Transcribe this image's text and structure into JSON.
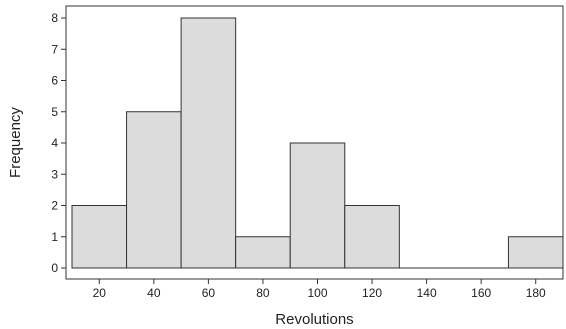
{
  "chart_data": {
    "type": "bar",
    "title": "",
    "xlabel": "Revolutions",
    "ylabel": "Frequency",
    "bin_edges": [
      10,
      30,
      50,
      70,
      90,
      110,
      130,
      150,
      170,
      190
    ],
    "values": [
      2,
      5,
      8,
      1,
      4,
      2,
      0,
      0,
      1
    ],
    "xlim": [
      10,
      190
    ],
    "ylim": [
      0,
      8
    ],
    "x_ticks": [
      20,
      40,
      60,
      80,
      100,
      120,
      140,
      160,
      180
    ],
    "x_tick_labels": [
      "20",
      "40",
      "60",
      "80",
      "100",
      "120",
      "140",
      "160",
      "180"
    ],
    "y_ticks": [
      0,
      1,
      2,
      3,
      4,
      5,
      6,
      7,
      8
    ],
    "y_tick_labels": [
      "0",
      "1",
      "2",
      "3",
      "4",
      "5",
      "6",
      "7",
      "8"
    ],
    "grid": false,
    "legend": "none",
    "colors": {
      "bar_fill": "#dcdcdc",
      "bar_stroke": "#333333",
      "axis": "#333333"
    }
  }
}
